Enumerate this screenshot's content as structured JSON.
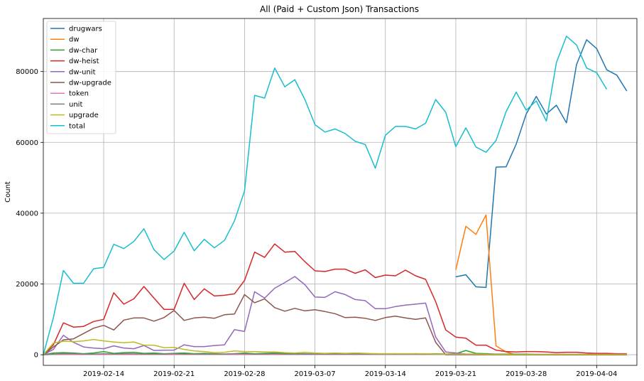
{
  "chart_data": {
    "type": "line",
    "title": "All (Paid + Custom Json) Transactions",
    "xlabel": "",
    "ylabel": "Count",
    "ylim": [
      -3000,
      95000
    ],
    "xlim": [
      "2019-02-08",
      "2019-04-08"
    ],
    "y_ticks": [
      0,
      20000,
      40000,
      60000,
      80000
    ],
    "y_tick_labels": [
      "0",
      "20000",
      "40000",
      "60000",
      "80000"
    ],
    "x_ticks": [
      "2019-02-14",
      "2019-02-21",
      "2019-02-28",
      "2019-03-07",
      "2019-03-14",
      "2019-03-21",
      "2019-03-28",
      "2019-04-04"
    ],
    "grid": true,
    "legend_position": "top-left",
    "dates": [
      "2019-02-08",
      "2019-02-09",
      "2019-02-10",
      "2019-02-11",
      "2019-02-12",
      "2019-02-13",
      "2019-02-14",
      "2019-02-15",
      "2019-02-16",
      "2019-02-17",
      "2019-02-18",
      "2019-02-19",
      "2019-02-20",
      "2019-02-21",
      "2019-02-22",
      "2019-02-23",
      "2019-02-24",
      "2019-02-25",
      "2019-02-26",
      "2019-02-27",
      "2019-02-28",
      "2019-03-01",
      "2019-03-02",
      "2019-03-03",
      "2019-03-04",
      "2019-03-05",
      "2019-03-06",
      "2019-03-07",
      "2019-03-08",
      "2019-03-09",
      "2019-03-10",
      "2019-03-11",
      "2019-03-12",
      "2019-03-13",
      "2019-03-14",
      "2019-03-15",
      "2019-03-16",
      "2019-03-17",
      "2019-03-18",
      "2019-03-19",
      "2019-03-20",
      "2019-03-21",
      "2019-03-22",
      "2019-03-23",
      "2019-03-24",
      "2019-03-25",
      "2019-03-26",
      "2019-03-27",
      "2019-03-28",
      "2019-03-29",
      "2019-03-30",
      "2019-03-31",
      "2019-04-01",
      "2019-04-02",
      "2019-04-03",
      "2019-04-04",
      "2019-04-05",
      "2019-04-06",
      "2019-04-07",
      "2019-04-08"
    ],
    "series": [
      {
        "name": "drugwars",
        "color": "#1f77b4",
        "values": [
          null,
          null,
          null,
          null,
          null,
          null,
          null,
          null,
          null,
          null,
          null,
          null,
          null,
          null,
          null,
          null,
          null,
          null,
          null,
          null,
          null,
          null,
          null,
          null,
          null,
          null,
          null,
          null,
          null,
          null,
          null,
          null,
          null,
          null,
          null,
          null,
          null,
          null,
          null,
          null,
          null,
          22000,
          22600,
          19200,
          19000,
          53000,
          53100,
          59500,
          68000,
          73000,
          68000,
          70500,
          65500,
          82000,
          89000,
          86500,
          80500,
          79000,
          74500,
          null
        ]
      },
      {
        "name": "dw",
        "color": "#ff7f0e",
        "values": [
          null,
          null,
          null,
          null,
          null,
          null,
          null,
          null,
          null,
          null,
          null,
          null,
          null,
          null,
          null,
          null,
          null,
          null,
          null,
          null,
          null,
          null,
          null,
          null,
          null,
          null,
          null,
          null,
          null,
          null,
          null,
          null,
          null,
          null,
          null,
          null,
          null,
          null,
          null,
          null,
          null,
          24000,
          36300,
          34000,
          39500,
          2500,
          800,
          0,
          0,
          0,
          0,
          0,
          0,
          0,
          0,
          0,
          0,
          0,
          0,
          null
        ]
      },
      {
        "name": "dw-char",
        "color": "#2ca02c",
        "values": [
          0,
          500,
          600,
          500,
          300,
          500,
          900,
          400,
          600,
          700,
          400,
          500,
          300,
          400,
          500,
          300,
          400,
          300,
          200,
          300,
          500,
          300,
          400,
          500,
          400,
          300,
          300,
          200,
          300,
          400,
          300,
          300,
          200,
          300,
          200,
          300,
          200,
          300,
          200,
          300,
          200,
          300,
          1200,
          400,
          300,
          200,
          200,
          200,
          200,
          100,
          100,
          100,
          100,
          100,
          100,
          100,
          100,
          100,
          100,
          null
        ]
      },
      {
        "name": "dw-heist",
        "color": "#d62728",
        "values": [
          0,
          2800,
          9000,
          7800,
          8000,
          9400,
          10000,
          17500,
          14300,
          15800,
          19300,
          16000,
          12800,
          12800,
          20200,
          15600,
          18600,
          16600,
          16800,
          17200,
          21000,
          29000,
          27500,
          31300,
          29000,
          29200,
          26300,
          23700,
          23500,
          24200,
          24200,
          23000,
          24000,
          21800,
          22500,
          22300,
          23900,
          22300,
          21300,
          15000,
          7000,
          5000,
          4700,
          2700,
          2700,
          1300,
          900,
          800,
          900,
          900,
          800,
          600,
          700,
          700,
          500,
          400,
          400,
          300,
          300,
          null
        ]
      },
      {
        "name": "dw-unit",
        "color": "#9467bd",
        "values": [
          0,
          1500,
          5500,
          3500,
          2200,
          1900,
          1700,
          2500,
          1900,
          1700,
          2600,
          1200,
          1300,
          1300,
          2800,
          2300,
          2300,
          2600,
          2800,
          7100,
          6600,
          17800,
          16000,
          18800,
          20400,
          22100,
          19800,
          16300,
          16200,
          17800,
          17000,
          15600,
          15300,
          13000,
          13000,
          13600,
          14000,
          14300,
          14600,
          5000,
          800,
          500,
          200,
          100,
          100,
          100,
          0,
          0,
          0,
          0,
          0,
          0,
          0,
          0,
          0,
          0,
          0,
          0,
          0,
          null
        ]
      },
      {
        "name": "dw-upgrade",
        "color": "#8c564b",
        "values": [
          0,
          2200,
          4200,
          4500,
          6000,
          7500,
          8300,
          7000,
          9800,
          10400,
          10400,
          9500,
          10500,
          12500,
          9700,
          10400,
          10600,
          10300,
          11300,
          11500,
          17000,
          14700,
          15800,
          13300,
          12300,
          13100,
          12400,
          12700,
          12200,
          11600,
          10500,
          10600,
          10300,
          9700,
          10500,
          10900,
          10400,
          10000,
          10400,
          3500,
          0,
          0,
          0,
          0,
          0,
          0,
          0,
          0,
          0,
          0,
          0,
          0,
          0,
          0,
          0,
          0,
          0,
          0,
          0,
          null
        ]
      },
      {
        "name": "token",
        "color": "#e377c2",
        "values": [
          0,
          100,
          100,
          100,
          100,
          100,
          100,
          100,
          100,
          100,
          100,
          100,
          100,
          100,
          100,
          100,
          100,
          100,
          100,
          100,
          100,
          100,
          100,
          100,
          100,
          100,
          100,
          100,
          100,
          100,
          100,
          100,
          100,
          100,
          100,
          100,
          100,
          100,
          100,
          100,
          100,
          100,
          100,
          100,
          100,
          100,
          100,
          100,
          100,
          100,
          100,
          100,
          100,
          100,
          100,
          100,
          100,
          100,
          100,
          null
        ]
      },
      {
        "name": "unit",
        "color": "#7f7f7f",
        "values": [
          0,
          200,
          300,
          300,
          200,
          200,
          300,
          200,
          300,
          300,
          200,
          200,
          200,
          300,
          200,
          200,
          200,
          200,
          200,
          300,
          300,
          200,
          200,
          300,
          200,
          200,
          200,
          200,
          200,
          200,
          200,
          200,
          200,
          200,
          200,
          200,
          200,
          200,
          200,
          200,
          200,
          200,
          200,
          200,
          100,
          100,
          100,
          100,
          100,
          100,
          100,
          100,
          100,
          100,
          100,
          100,
          100,
          100,
          100,
          null
        ]
      },
      {
        "name": "upgrade",
        "color": "#bcbd22",
        "values": [
          0,
          3300,
          3800,
          3700,
          3900,
          4300,
          3900,
          3600,
          3400,
          3600,
          2700,
          2700,
          2000,
          2100,
          1500,
          1100,
          900,
          600,
          700,
          1100,
          900,
          900,
          800,
          800,
          600,
          500,
          700,
          500,
          400,
          500,
          400,
          500,
          400,
          300,
          300,
          300,
          300,
          300,
          300,
          200,
          200,
          200,
          200,
          200,
          100,
          100,
          100,
          100,
          100,
          100,
          100,
          100,
          100,
          100,
          100,
          100,
          100,
          100,
          100,
          null
        ]
      },
      {
        "name": "total",
        "color": "#17becf",
        "values": [
          0,
          10500,
          23800,
          20200,
          20200,
          24300,
          24700,
          31200,
          30000,
          32000,
          35600,
          29700,
          26900,
          29300,
          34600,
          29400,
          32600,
          30200,
          32300,
          37800,
          46300,
          73300,
          72500,
          81000,
          75700,
          77700,
          72100,
          65000,
          62900,
          63800,
          62500,
          60300,
          59400,
          52700,
          62000,
          64500,
          64500,
          63800,
          65400,
          72100,
          68500,
          58800,
          64100,
          58700,
          57200,
          60500,
          68700,
          74200,
          69100,
          71700,
          66000,
          82500,
          90000,
          87500,
          81000,
          79700,
          75000,
          null,
          null,
          null
        ]
      }
    ]
  }
}
